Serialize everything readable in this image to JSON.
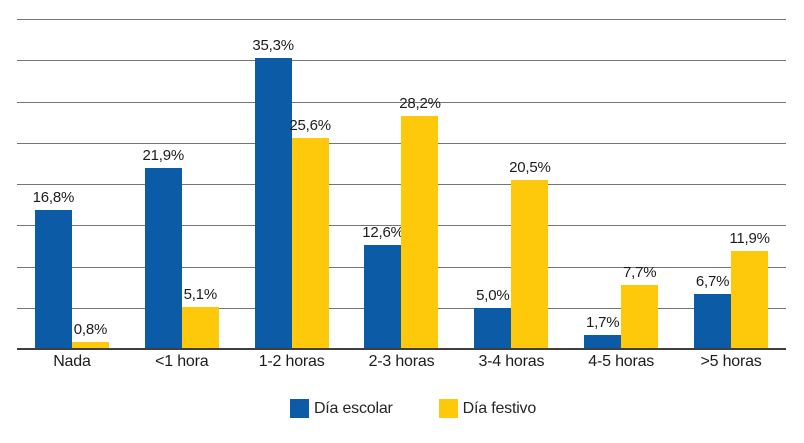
{
  "chart_data": {
    "type": "bar",
    "title": "",
    "xlabel": "",
    "ylabel": "",
    "categories": [
      "Nada",
      "<1 hora",
      "1-2 horas",
      "2-3 horas",
      "3-4 horas",
      "4-5 horas",
      ">5 horas"
    ],
    "series": [
      {
        "name": "Día escolar",
        "color": "#0B5BA7",
        "values": [
          16.8,
          21.9,
          35.3,
          12.6,
          5.0,
          1.7,
          6.7
        ],
        "labels": [
          "16,8%",
          "21,9%",
          "35,3%",
          "12,6%",
          "5,0%",
          "1,7%",
          "6,7%"
        ]
      },
      {
        "name": "Día festivo",
        "color": "#FFC90B",
        "values": [
          0.8,
          5.1,
          25.6,
          28.2,
          20.5,
          7.7,
          11.9
        ],
        "labels": [
          "0,8%",
          "5,1%",
          "25,6%",
          "28,2%",
          "20,5%",
          "7,7%",
          "11,9%"
        ]
      }
    ],
    "ylim": [
      0,
      40
    ],
    "grid_step": 5,
    "grid": true,
    "y_tick_labels_visible": false,
    "legend_position": "bottom",
    "grid_color": "#757575",
    "axis_color": "#3F3F3F",
    "text_color": "#1C1C1C"
  }
}
